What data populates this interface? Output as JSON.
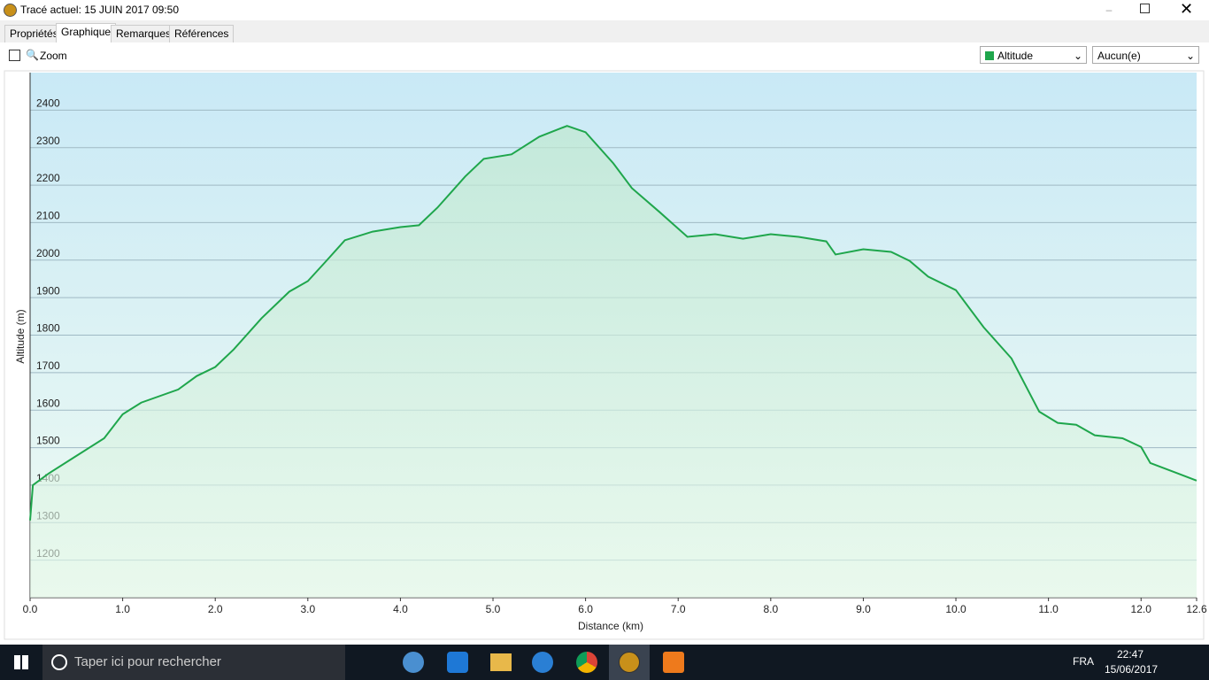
{
  "window": {
    "title": "Tracé actuel: 15 JUIN 2017 09:50"
  },
  "tabs": [
    "Propriétés",
    "Graphique",
    "Remarques",
    "Références"
  ],
  "toolbar": {
    "zoom": "Zoom",
    "series_select": "Altitude",
    "second_select": "Aucun(e)"
  },
  "chart_data": {
    "type": "line",
    "x_label": "Distance  (km)",
    "y_label": "Altitude (m)",
    "color": "#1fa64c",
    "grid": true,
    "x": [
      0,
      0.03,
      0.2,
      0.5,
      0.8,
      1.0,
      1.2,
      1.6,
      1.8,
      2.0,
      2.2,
      2.5,
      2.8,
      3.0,
      3.2,
      3.4,
      3.7,
      4.0,
      4.2,
      4.4,
      4.7,
      4.9,
      5.2,
      5.5,
      5.8,
      6.0,
      6.3,
      6.5,
      6.8,
      7.1,
      7.4,
      7.7,
      8.0,
      8.3,
      8.6,
      8.7,
      9.0,
      9.3,
      9.5,
      9.7,
      10.0,
      10.3,
      10.6,
      10.9,
      11.1,
      11.3,
      11.5,
      11.8,
      12.0,
      12.1,
      12.4,
      12.6
    ],
    "values": [
      1306,
      1400,
      1431,
      1478,
      1525,
      1589,
      1620,
      1655,
      1691,
      1715,
      1762,
      1845,
      1916,
      1944,
      1998,
      2053,
      2076,
      2088,
      2093,
      2140,
      2223,
      2270,
      2282,
      2329,
      2358,
      2341,
      2258,
      2192,
      2128,
      2062,
      2069,
      2057,
      2069,
      2062,
      2050,
      2015,
      2029,
      2022,
      1998,
      1956,
      1920,
      1821,
      1738,
      1596,
      1566,
      1561,
      1533,
      1525,
      1502,
      1459,
      1431,
      1412
    ],
    "xlim": [
      0,
      12.6
    ],
    "ylim": [
      1100,
      2500
    ],
    "xticks": [
      {
        "value": 0,
        "label": "0.0"
      },
      {
        "value": 1,
        "label": "1.0"
      },
      {
        "value": 2,
        "label": "2.0"
      },
      {
        "value": 3,
        "label": "3.0"
      },
      {
        "value": 4,
        "label": "4.0"
      },
      {
        "value": 5,
        "label": "5.0"
      },
      {
        "value": 6,
        "label": "6.0"
      },
      {
        "value": 7,
        "label": "7.0"
      },
      {
        "value": 8,
        "label": "8.0"
      },
      {
        "value": 9,
        "label": "9.0"
      },
      {
        "value": 10,
        "label": "10.0"
      },
      {
        "value": 11,
        "label": "11.0"
      },
      {
        "value": 12,
        "label": "12.0"
      },
      12.6
    ],
    "yticks": [
      1200,
      1300,
      1400,
      1500,
      1600,
      1700,
      1800,
      1900,
      2000,
      2100,
      2200,
      2300,
      2400
    ]
  },
  "taskbar": {
    "search": "Taper ici pour rechercher",
    "language": "FRA",
    "time": "22:47",
    "date": "15/06/2017"
  }
}
